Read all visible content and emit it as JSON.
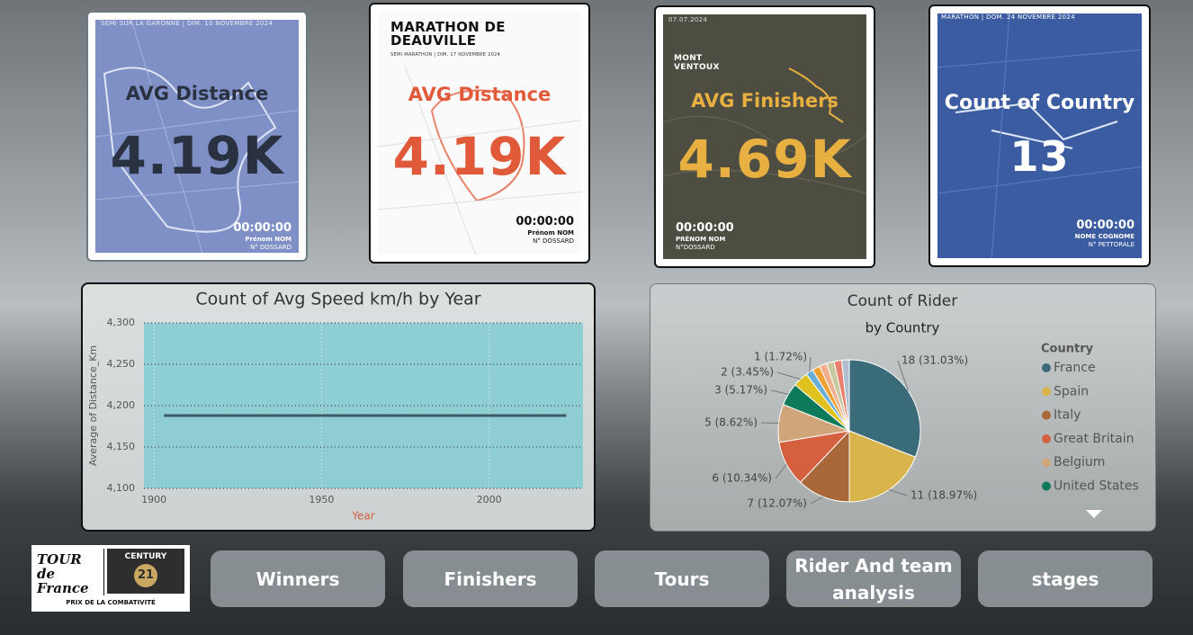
{
  "cards": [
    {
      "label": "AVG Distance",
      "value": "4.19K",
      "poster": {
        "header": "SEMI SUR LA GARONNE | DIM. 10 NOVEMBRE 2024",
        "time": "00:00:00",
        "name": "Prénom NOM",
        "bib": "N° DOSSARD"
      }
    },
    {
      "label": "AVG Distance",
      "value": "4.19K",
      "poster": {
        "header": "MARATHON DE DEAUVILLE",
        "sub": "SEMI-MARATHON | DIM. 17 NOVEMBRE 2024",
        "time": "00:00:00",
        "name": "Prénom NOM",
        "bib": "N° DOSSARD"
      }
    },
    {
      "label": "AVG Finishers",
      "value": "4.69K",
      "poster": {
        "header": "07.07.2024",
        "sub": "MONT VENTOUX",
        "time": "00:00:00",
        "name": "PRÉNOM NOM",
        "bib": "N°DOSSARD"
      }
    },
    {
      "label": "Count of Country",
      "value": "13",
      "poster": {
        "header": "MARATHON | DOM. 24 NOVEMBRE 2024",
        "time": "00:00:00",
        "name": "NOME COGNOME",
        "bib": "N° PETTORALE"
      }
    }
  ],
  "chart_data": [
    {
      "type": "line",
      "title": "Count of Avg Speed km/h by Year",
      "x_label": "Year",
      "y_label": "Average of Distance_Km",
      "x": [
        1903,
        2023
      ],
      "values": [
        4188,
        4188
      ],
      "color": "#3d5a62",
      "xlim": [
        1897,
        2028
      ],
      "xticks": [
        1900,
        1950,
        2000
      ],
      "ylim": [
        4100,
        4300
      ],
      "yticks": [
        {
          "value": 4100,
          "label": "4,100"
        },
        {
          "value": 4150,
          "label": "4,150"
        },
        {
          "value": 4200,
          "label": "4,200"
        },
        {
          "value": 4250,
          "label": "4,250"
        },
        {
          "value": 4300,
          "label": "4,300"
        }
      ],
      "grid": true
    },
    {
      "type": "pie",
      "title": "Count of Rider",
      "subtitle": "by Country",
      "legend_title": "Country",
      "legend": "right",
      "categories": [
        "France",
        "Spain",
        "Italy",
        "Great Britain",
        "Belgium",
        "United States",
        null,
        null,
        null,
        null,
        null,
        null,
        null
      ],
      "values": [
        18,
        11,
        7,
        6,
        5,
        3,
        2,
        1,
        1,
        1,
        1,
        1,
        1
      ],
      "value_labels": [
        "18 (31.03%)",
        "11 (18.97%)",
        "7 (12.07%)",
        "6 (10.34%)",
        "5 (8.62%)",
        "3 (5.17%)",
        "2 (3.45%)",
        "1 (1.72%)",
        null,
        null,
        null,
        null,
        null
      ],
      "colors": [
        "#3a6b78",
        "#d9b44a",
        "#a8683a",
        "#d4603f",
        "#d0a57a",
        "#0e7a5a",
        "#e0c21f",
        "#6aaed6",
        "#f0a030",
        "#f0b090",
        "#c9c9a0",
        "#e88070",
        "#b0c0d0"
      ]
    }
  ],
  "nav": [
    "Winners",
    "Finishers",
    "Tours",
    "Rider And team analysis",
    "stages"
  ],
  "logo": {
    "tour": "TOUR de France",
    "brand": "CENTURY",
    "number": "21",
    "caption": "PRIX DE LA COMBATIVITÉ"
  }
}
